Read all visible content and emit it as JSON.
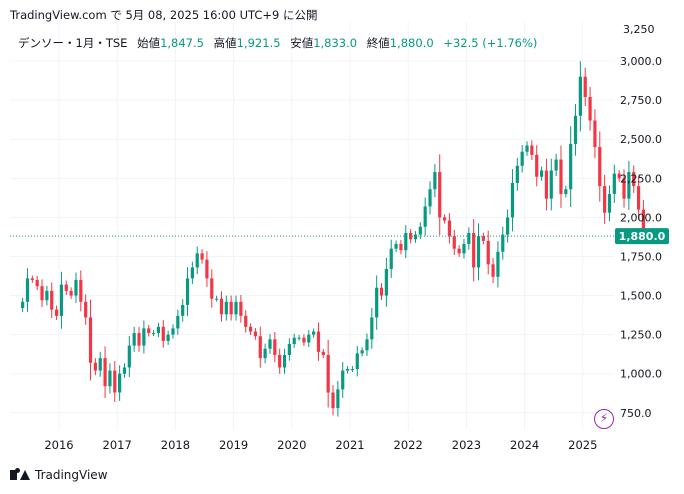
{
  "header": {
    "source_text": "TradingView.com で 5月 08, 2025 16:00 UTC+9 に公開"
  },
  "ohlc": {
    "symbol": "デンソー・1月・TSE",
    "open_label": "始値",
    "open_value": "1,847.5",
    "high_label": "高値",
    "high_value": "1,921.5",
    "low_label": "安値",
    "low_value": "1,833.0",
    "close_label": "終値",
    "close_value": "1,880.0",
    "change": "+32.5 (+1.76%)"
  },
  "footer": {
    "brand": "TradingView"
  },
  "colors": {
    "up": "#089981",
    "down": "#f23645",
    "last_price_bg": "#089981",
    "event_icon": "#9c27b0"
  },
  "chart_data": {
    "type": "candlestick",
    "interval": "1M",
    "ylim": [
      640,
      3250
    ],
    "y_ticks": [
      750,
      1000,
      1250,
      1500,
      1750,
      2000,
      2250,
      2500,
      2750,
      3000
    ],
    "y_tick_labels": [
      "750.0",
      "1,000.0",
      "1,250.0",
      "1,500.0",
      "1,750.0",
      "2,000.0",
      "2,250.0",
      "2,500.0",
      "2,750.0",
      "3,000.0"
    ],
    "y_top_label": "3,250",
    "x_tick_labels": [
      "2016",
      "2017",
      "2018",
      "2019",
      "2020",
      "2021",
      "2022",
      "2023",
      "2024",
      "2025"
    ],
    "last_price": 1880,
    "last_price_label": "1,880.0",
    "x_start": "2015-05",
    "closes": [
      1460,
      1610,
      1600,
      1560,
      1470,
      1530,
      1410,
      1370,
      1570,
      1530,
      1500,
      1600,
      1460,
      1360,
      1070,
      1020,
      1100,
      920,
      1020,
      880,
      1000,
      1040,
      1180,
      1260,
      1180,
      1290,
      1260,
      1260,
      1300,
      1210,
      1250,
      1290,
      1370,
      1440,
      1610,
      1680,
      1770,
      1730,
      1610,
      1480,
      1480,
      1380,
      1460,
      1380,
      1460,
      1370,
      1300,
      1270,
      1240,
      1100,
      1160,
      1220,
      1120,
      1040,
      1120,
      1190,
      1230,
      1230,
      1200,
      1250,
      1270,
      1140,
      1120,
      880,
      780,
      900,
      1020,
      1030,
      1030,
      1130,
      1150,
      1220,
      1360,
      1550,
      1500,
      1670,
      1800,
      1830,
      1790,
      1900,
      1860,
      1890,
      1940,
      2070,
      2180,
      2290,
      2000,
      1980,
      1880,
      1800,
      1770,
      1830,
      1900,
      1680,
      1880,
      1850,
      1700,
      1620,
      1780,
      1890,
      2000,
      2220,
      2330,
      2420,
      2460,
      2400,
      2260,
      2300,
      2120,
      2300,
      2370,
      2150,
      2180,
      2470,
      2650,
      2900,
      2770,
      2620,
      2450,
      2200,
      2030,
      2150,
      2280,
      2250,
      2120,
      2290,
      2200,
      2050,
      1910,
      1900,
      1880
    ]
  }
}
